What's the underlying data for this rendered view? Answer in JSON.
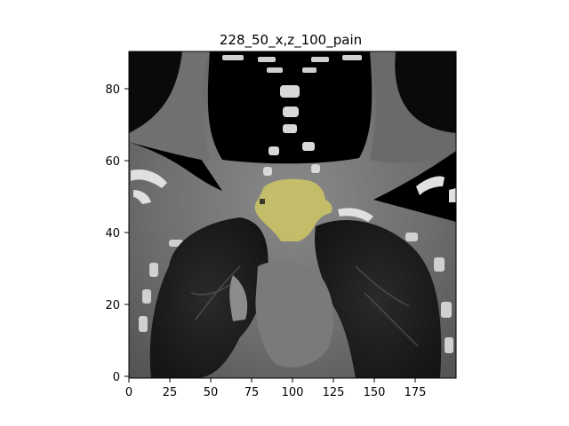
{
  "figure": {
    "title": "228_50_x,z_100_pain",
    "x_ticks": [
      "0",
      "25",
      "50",
      "75",
      "100",
      "125",
      "150",
      "175"
    ],
    "y_ticks": [
      "0",
      "20",
      "40",
      "60",
      "80"
    ]
  },
  "image_content": {
    "description_semantic": "coronal CT slice with highlighted region",
    "overlay_color": "#d8d060",
    "background_color": "#000000"
  }
}
